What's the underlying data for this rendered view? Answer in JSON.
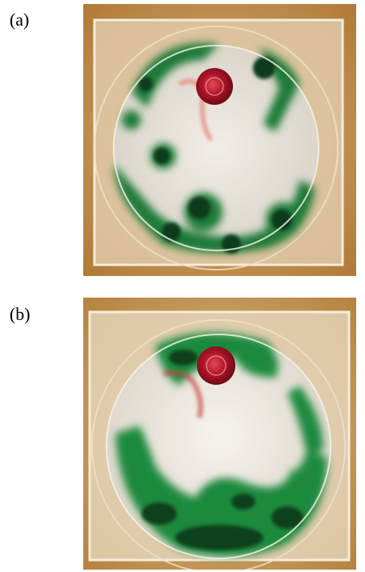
{
  "panels": [
    {
      "label": "(a)"
    },
    {
      "label": "(b)"
    }
  ]
}
